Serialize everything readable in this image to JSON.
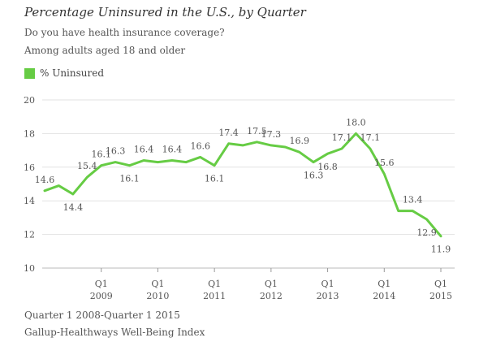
{
  "title": "Percentage Uninsured in the U.S., by Quarter",
  "subtitle_lines": [
    "Do you have health insurance coverage?",
    "Among adults aged 18 and older"
  ],
  "legend": {
    "label": "% Uninsured",
    "color": "#66cc44"
  },
  "footer_lines": [
    "Quarter 1 2008-Quarter 1 2015",
    "Gallup-Healthways Well-Being Index"
  ],
  "chart_data": {
    "type": "line",
    "title": "Percentage Uninsured in the U.S., by Quarter",
    "ylim": [
      10,
      20
    ],
    "y_ticks": [
      10,
      12,
      14,
      16,
      18,
      20
    ],
    "grid": true,
    "legend_position": "top-left",
    "x_labels": [
      {
        "index": 4,
        "line1": "Q1",
        "line2": "2009"
      },
      {
        "index": 8,
        "line1": "Q1",
        "line2": "2010"
      },
      {
        "index": 12,
        "line1": "Q1",
        "line2": "2011"
      },
      {
        "index": 16,
        "line1": "Q1",
        "line2": "2012"
      },
      {
        "index": 20,
        "line1": "Q1",
        "line2": "2013"
      },
      {
        "index": 24,
        "line1": "Q1",
        "line2": "2014"
      },
      {
        "index": 28,
        "line1": "Q1",
        "line2": "2015"
      }
    ],
    "series": [
      {
        "name": "% Uninsured",
        "color": "#66cc44",
        "values": [
          14.6,
          14.9,
          14.4,
          15.4,
          16.1,
          16.3,
          16.1,
          16.4,
          16.3,
          16.4,
          16.3,
          16.6,
          16.1,
          17.4,
          17.3,
          17.5,
          17.3,
          17.2,
          16.9,
          16.3,
          16.8,
          17.1,
          18.0,
          17.1,
          15.6,
          13.4,
          13.4,
          12.9,
          11.9
        ]
      }
    ],
    "data_labels": [
      {
        "index": 0,
        "text": "14.6",
        "pos": "above"
      },
      {
        "index": 2,
        "text": "14.4",
        "pos": "below"
      },
      {
        "index": 3,
        "text": "15.4",
        "pos": "above"
      },
      {
        "index": 4,
        "text": "16.1",
        "pos": "above"
      },
      {
        "index": 5,
        "text": "16.3",
        "pos": "above"
      },
      {
        "index": 6,
        "text": "16.1",
        "pos": "below"
      },
      {
        "index": 7,
        "text": "16.4",
        "pos": "above"
      },
      {
        "index": 9,
        "text": "16.4",
        "pos": "above"
      },
      {
        "index": 11,
        "text": "16.6",
        "pos": "above"
      },
      {
        "index": 12,
        "text": "16.1",
        "pos": "below"
      },
      {
        "index": 13,
        "text": "17.4",
        "pos": "above"
      },
      {
        "index": 15,
        "text": "17.5",
        "pos": "above"
      },
      {
        "index": 16,
        "text": "17.3",
        "pos": "above"
      },
      {
        "index": 18,
        "text": "16.9",
        "pos": "above"
      },
      {
        "index": 19,
        "text": "16.3",
        "pos": "below"
      },
      {
        "index": 20,
        "text": "16.8",
        "pos": "below"
      },
      {
        "index": 21,
        "text": "17.1",
        "pos": "above"
      },
      {
        "index": 22,
        "text": "18.0",
        "pos": "above"
      },
      {
        "index": 23,
        "text": "17.1",
        "pos": "above"
      },
      {
        "index": 24,
        "text": "15.6",
        "pos": "above"
      },
      {
        "index": 26,
        "text": "13.4",
        "pos": "above"
      },
      {
        "index": 27,
        "text": "12.9",
        "pos": "below"
      },
      {
        "index": 28,
        "text": "11.9",
        "pos": "below"
      }
    ]
  }
}
